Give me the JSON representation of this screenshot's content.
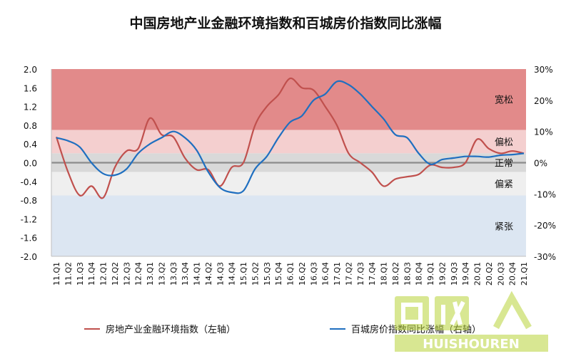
{
  "chart_data": {
    "type": "line",
    "title": "中国房地产业金融环境指数和百城房价指数同比涨幅",
    "x": [
      "11.Q1",
      "11.Q2",
      "11.Q3",
      "11.Q4",
      "12.Q1",
      "12.Q2",
      "12.Q3",
      "12.Q4",
      "13.Q1",
      "13.Q2",
      "13.Q3",
      "13.Q4",
      "14.Q1",
      "14.Q2",
      "14.Q3",
      "14.Q4",
      "15.Q1",
      "15.Q2",
      "15.Q3",
      "15.Q4",
      "16.Q1",
      "16.Q2",
      "16.Q3",
      "16.Q4",
      "17.Q1",
      "17.Q2",
      "17.Q3",
      "17.Q4",
      "18.Q1",
      "18.Q2",
      "18.Q3",
      "18.Q4",
      "19.Q1",
      "19.Q2",
      "19.Q3",
      "19.Q4",
      "20.Q1",
      "20.Q2",
      "20.Q3",
      "20.Q4",
      "21.Q1"
    ],
    "left_axis": {
      "ylim": [
        -2.0,
        2.0
      ],
      "ticks": [
        "2.0",
        "1.6",
        "1.2",
        "0.8",
        "0.4",
        "0.0",
        "-0.4",
        "-0.8",
        "-1.2",
        "-1.6",
        "-2.0"
      ]
    },
    "right_axis": {
      "ylim": [
        -30,
        30
      ],
      "ticks": [
        "30%",
        "20%",
        "10%",
        "0%",
        "-10%",
        "-20%",
        "-30%"
      ]
    },
    "zones": [
      {
        "label": "宽松",
        "from": 0.7,
        "to": 2.0,
        "color": "#e28a8a"
      },
      {
        "label": "偏松",
        "from": 0.2,
        "to": 0.7,
        "color": "#f4cfcf"
      },
      {
        "label": "正常",
        "from": -0.2,
        "to": 0.2,
        "color": "#d9d9d9"
      },
      {
        "label": "偏紧",
        "from": -0.7,
        "to": -0.2,
        "color": "#efefef"
      },
      {
        "label": "紧张",
        "from": -2.0,
        "to": -0.7,
        "color": "#dce6f2"
      }
    ],
    "series": [
      {
        "name": "房地产业金融环境指数（左轴）",
        "axis": "left",
        "color": "#c0504d",
        "values": [
          0.55,
          -0.2,
          -0.7,
          -0.5,
          -0.75,
          -0.1,
          0.25,
          0.3,
          0.95,
          0.6,
          0.55,
          0.1,
          -0.15,
          -0.15,
          -0.5,
          -0.1,
          0.0,
          0.8,
          1.2,
          1.45,
          1.8,
          1.6,
          1.55,
          1.2,
          0.8,
          0.2,
          0.0,
          -0.2,
          -0.5,
          -0.35,
          -0.3,
          -0.25,
          -0.05,
          -0.1,
          -0.1,
          0.0,
          0.5,
          0.3,
          0.2,
          0.25,
          0.2
        ]
      },
      {
        "name": "百城房价指数同比涨幅（右轴）",
        "axis": "right",
        "color": "#1f6fc0",
        "values": [
          8,
          7,
          5,
          0,
          -3.5,
          -4,
          -2,
          3,
          6,
          8,
          10,
          8,
          4,
          -3,
          -8,
          -9.5,
          -9,
          -2,
          2,
          8,
          13,
          15,
          20,
          22,
          26,
          25,
          22,
          18,
          14,
          9,
          8,
          3,
          -0.5,
          1,
          1.5,
          2,
          2,
          1.8,
          2.4,
          2.6,
          3
        ]
      }
    ]
  },
  "watermark_text": "HUISHOUREN"
}
